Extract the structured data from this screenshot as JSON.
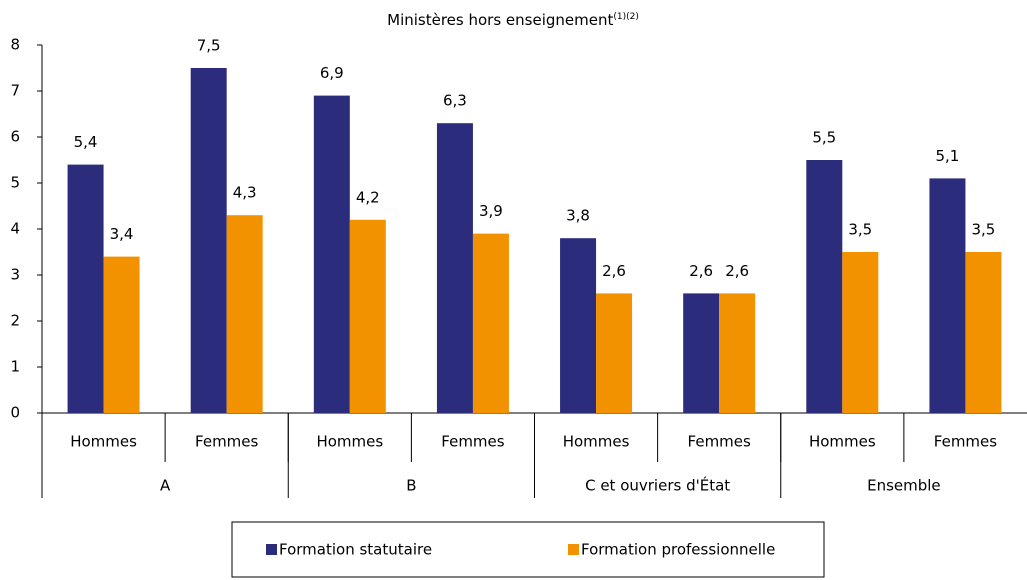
{
  "chart_data": {
    "type": "bar",
    "title": "Ministères hors enseignement",
    "title_note": "(1)(2)",
    "categories": [
      "Hommes",
      "Femmes",
      "Hommes",
      "Femmes",
      "Hommes",
      "Femmes",
      "Hommes",
      "Femmes"
    ],
    "groups": [
      "A",
      "B",
      "C et ouvriers d'État",
      "Ensemble"
    ],
    "series": [
      {
        "name": "Formation statutaire",
        "color": "#2b2c7c",
        "values": [
          5.4,
          7.5,
          6.9,
          6.3,
          3.8,
          2.6,
          5.5,
          5.1
        ],
        "value_labels": [
          "5,4",
          "7,5",
          "6,9",
          "6,3",
          "3,8",
          "2,6",
          "5,5",
          "5,1"
        ]
      },
      {
        "name": "Formation professionnelle",
        "color": "#f39200",
        "values": [
          3.4,
          4.3,
          4.2,
          3.9,
          2.6,
          2.6,
          3.5,
          3.5
        ],
        "value_labels": [
          "3,4",
          "4,3",
          "4,2",
          "3,9",
          "2,6",
          "2,6",
          "3,5",
          "3,5"
        ]
      }
    ],
    "ylim": [
      0,
      8
    ],
    "yticks": [
      0,
      1,
      2,
      3,
      4,
      5,
      6,
      7,
      8
    ],
    "legend": "bottom"
  }
}
